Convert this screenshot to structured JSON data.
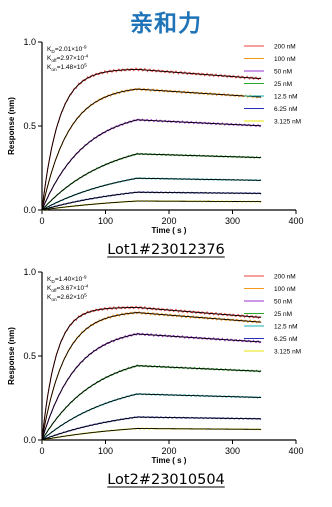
{
  "page_title": "亲和力",
  "colors": {
    "title": "#1f73b7",
    "fit": "#000000",
    "series": [
      "#e8413c",
      "#f39a1c",
      "#9b2fd1",
      "#2aa628",
      "#1ab0b0",
      "#2830b8",
      "#e8e30a"
    ]
  },
  "chart_data": [
    {
      "type": "line",
      "caption": "Lot1#23012376",
      "xlabel": "Time ( s )",
      "ylabel": "Response (nm)",
      "xlim": [
        0,
        400
      ],
      "ylim": [
        0,
        1.0
      ],
      "x_ticks": [
        0,
        100,
        200,
        300,
        400
      ],
      "y_ticks": [
        {
          "v": 0,
          "label": "0.0"
        },
        {
          "v": 0.5,
          "label": "0.5"
        },
        {
          "v": 1.0,
          "label": "1.0"
        }
      ],
      "association_end": 150,
      "x_end": 345,
      "kinetics": [
        {
          "name": "KD",
          "base": "K",
          "sub": "D",
          "value": "=2.01×10",
          "exp": "-9"
        },
        {
          "name": "koff",
          "base": "K",
          "sub": "off",
          "value": "=2.97×10",
          "exp": "-4"
        },
        {
          "name": "kon",
          "base": "K",
          "sub": "on",
          "value": "=1.48×10",
          "exp": "5"
        }
      ],
      "series": [
        {
          "name": "200 nM",
          "plateau": 0.84,
          "rate": 0.038,
          "decay": 0.00035
        },
        {
          "name": "100 nM",
          "plateau": 0.74,
          "rate": 0.024,
          "decay": 0.00035
        },
        {
          "name": "50 nM",
          "plateau": 0.6,
          "rate": 0.015,
          "decay": 0.00035
        },
        {
          "name": "25 nM",
          "plateau": 0.44,
          "rate": 0.0095,
          "decay": 0.00035
        },
        {
          "name": "12.5 nM",
          "plateau": 0.28,
          "rate": 0.0075,
          "decay": 0.00035
        },
        {
          "name": "6.25 nM",
          "plateau": 0.17,
          "rate": 0.0065,
          "decay": 0.00035
        },
        {
          "name": "3.125 nM",
          "plateau": 0.09,
          "rate": 0.006,
          "decay": 0.00035
        }
      ]
    },
    {
      "type": "line",
      "caption": "Lot2#23010504",
      "xlabel": "Time ( s )",
      "ylabel": "Response (nm)",
      "xlim": [
        0,
        400
      ],
      "ylim": [
        0,
        1.0
      ],
      "x_ticks": [
        0,
        100,
        200,
        300,
        400
      ],
      "y_ticks": [
        {
          "v": 0,
          "label": "0.0"
        },
        {
          "v": 0.5,
          "label": "0.5"
        },
        {
          "v": 1.0,
          "label": "1.0"
        }
      ],
      "association_end": 150,
      "x_end": 345,
      "kinetics": [
        {
          "name": "KD",
          "base": "K",
          "sub": "D",
          "value": "=1.40×10",
          "exp": "-9"
        },
        {
          "name": "koff",
          "base": "K",
          "sub": "off",
          "value": "=3.67×10",
          "exp": "-4"
        },
        {
          "name": "kon",
          "base": "K",
          "sub": "on",
          "value": "=2.62×10",
          "exp": "5"
        }
      ],
      "series": [
        {
          "name": "200 nM",
          "plateau": 0.79,
          "rate": 0.045,
          "decay": 0.0004
        },
        {
          "name": "100 nM",
          "plateau": 0.77,
          "rate": 0.028,
          "decay": 0.0004
        },
        {
          "name": "50 nM",
          "plateau": 0.67,
          "rate": 0.019,
          "decay": 0.0004
        },
        {
          "name": "25 nM",
          "plateau": 0.53,
          "rate": 0.012,
          "decay": 0.0004
        },
        {
          "name": "12.5 nM",
          "plateau": 0.38,
          "rate": 0.0085,
          "decay": 0.0004
        },
        {
          "name": "6.25 nM",
          "plateau": 0.21,
          "rate": 0.007,
          "decay": 0.0004
        },
        {
          "name": "3.125 nM",
          "plateau": 0.11,
          "rate": 0.0065,
          "decay": 0.0004
        }
      ]
    }
  ]
}
